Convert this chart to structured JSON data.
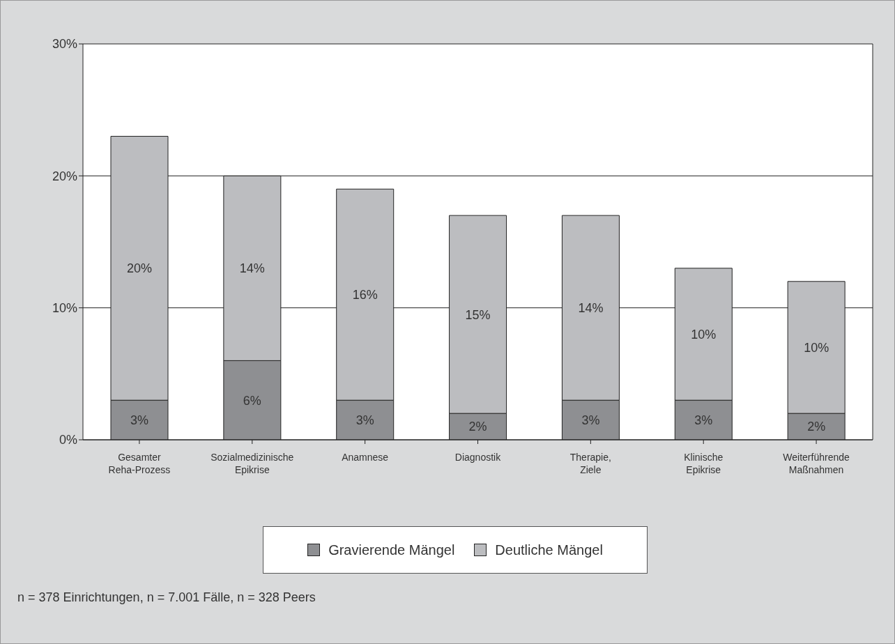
{
  "chart_data": {
    "type": "bar",
    "stacked": true,
    "categories": [
      "Gesamter\nReha-Prozess",
      "Sozialmedizinische\nEpikrise",
      "Anamnese",
      "Diagnostik",
      "Therapie,\nZiele",
      "Klinische\nEpikrise",
      "Weiterführende\nMaßnahmen"
    ],
    "series": [
      {
        "name": "Gravierende Mängel",
        "color": "#8e8f92",
        "values": [
          3,
          6,
          3,
          2,
          3,
          3,
          2
        ],
        "value_labels": [
          "3%",
          "6%",
          "3%",
          "2%",
          "3%",
          "3%",
          "2%"
        ]
      },
      {
        "name": "Deutliche Mängel",
        "color": "#bcbdc0",
        "values": [
          20,
          14,
          16,
          15,
          14,
          10,
          10
        ],
        "value_labels": [
          "20%",
          "14%",
          "16%",
          "15%",
          "14%",
          "10%",
          "10%"
        ]
      }
    ],
    "ylim": [
      0,
      30
    ],
    "yticks": [
      {
        "value": 0,
        "label": "0%"
      },
      {
        "value": 10,
        "label": "10%"
      },
      {
        "value": 20,
        "label": "20%"
      },
      {
        "value": 30,
        "label": "30%"
      }
    ],
    "grid": "y",
    "legend": "bottom",
    "annotations": [
      "n = 378 Einrichtungen, n = 7.001 Fälle, n = 328 Peers"
    ]
  }
}
